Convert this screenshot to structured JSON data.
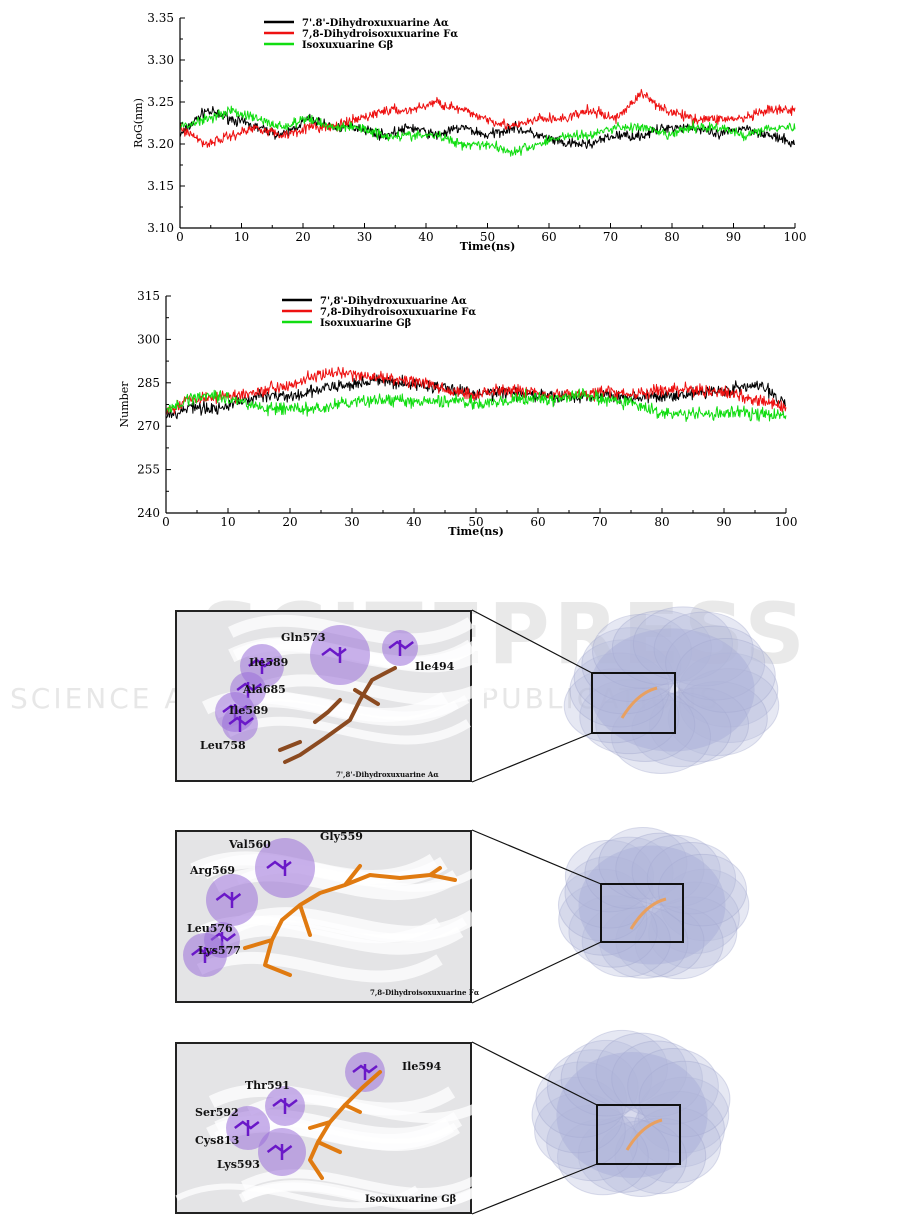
{
  "watermark": {
    "line1": "SCITEPRESS",
    "line2": "SCIENCE AND TECHNOLOGY PUBLICATIONS"
  },
  "colors": {
    "series_black": "#000000",
    "series_red": "#ee1111",
    "series_green": "#11dd11",
    "residue": "#7020c8",
    "ligand_brown": "#8b4a20",
    "ligand_orange": "#e07a10",
    "surface": "#b8bcdc"
  },
  "chart_data": [
    {
      "type": "line",
      "xlabel": "Time(ns)",
      "ylabel": "RoG(nm)",
      "xlim": [
        0,
        100
      ],
      "ylim": [
        3.1,
        3.35
      ],
      "x_ticks": [
        0,
        10,
        20,
        30,
        40,
        50,
        60,
        70,
        80,
        90,
        100
      ],
      "y_ticks": [
        "3.10",
        "3.15",
        "3.20",
        "3.25",
        "3.30",
        "3.35"
      ],
      "legend_position": "top-left",
      "series": [
        {
          "name": "7'.8'-Dihydroxuxuarine Aα",
          "color": "#000000",
          "values": [
            3.21,
            3.24,
            3.23,
            3.22,
            3.21,
            3.23,
            3.22,
            3.22,
            3.21,
            3.22,
            3.21,
            3.22,
            3.21,
            3.22,
            3.21,
            3.2,
            3.2,
            3.21,
            3.21,
            3.22,
            3.22,
            3.21,
            3.22,
            3.21,
            3.2
          ]
        },
        {
          "name": "7,8-Dihydroisoxuxuarine Fα",
          "color": "#ee1111",
          "values": [
            3.22,
            3.2,
            3.21,
            3.22,
            3.21,
            3.22,
            3.22,
            3.23,
            3.24,
            3.24,
            3.25,
            3.24,
            3.23,
            3.22,
            3.23,
            3.23,
            3.24,
            3.23,
            3.26,
            3.24,
            3.23,
            3.23,
            3.23,
            3.24,
            3.24
          ]
        },
        {
          "name": "Isoxuxuarine Gβ",
          "color": "#11dd11",
          "values": [
            3.22,
            3.23,
            3.24,
            3.23,
            3.22,
            3.23,
            3.22,
            3.22,
            3.21,
            3.21,
            3.21,
            3.2,
            3.2,
            3.19,
            3.2,
            3.21,
            3.21,
            3.22,
            3.22,
            3.21,
            3.22,
            3.22,
            3.21,
            3.22,
            3.22
          ]
        }
      ]
    },
    {
      "type": "line",
      "xlabel": "Time(ns)",
      "ylabel": "Number",
      "xlim": [
        0,
        100
      ],
      "ylim": [
        240,
        315
      ],
      "x_ticks": [
        0,
        10,
        20,
        30,
        40,
        50,
        60,
        70,
        80,
        90,
        100
      ],
      "y_ticks": [
        "240",
        "255",
        "270",
        "285",
        "300",
        "315"
      ],
      "legend_position": "top-center",
      "series": [
        {
          "name": "7',8'-Dihydroxuxuarine Aα",
          "color": "#000000",
          "values": [
            273,
            277,
            276,
            279,
            281,
            280,
            283,
            284,
            286,
            285,
            284,
            283,
            281,
            282,
            281,
            280,
            280,
            281,
            280,
            280,
            281,
            282,
            283,
            284,
            278
          ]
        },
        {
          "name": "7,8-Dihydroisoxuxuarine Fα",
          "color": "#ee1111",
          "values": [
            275,
            280,
            280,
            281,
            283,
            285,
            288,
            288,
            287,
            286,
            285,
            282,
            281,
            283,
            282,
            281,
            281,
            282,
            281,
            282,
            283,
            282,
            281,
            279,
            276
          ]
        },
        {
          "name": "Isoxuxuarine Gβ",
          "color": "#11dd11",
          "values": [
            275,
            280,
            281,
            278,
            276,
            276,
            276,
            278,
            279,
            279,
            278,
            279,
            278,
            278,
            280,
            279,
            281,
            279,
            278,
            275,
            274,
            274,
            275,
            274,
            274
          ]
        }
      ]
    }
  ],
  "panels": [
    {
      "ligand": "7',8'-Dihydroxuxuarine Aα",
      "residues": [
        "Gln573",
        "Ile589",
        "Ile494",
        "Ala685",
        "Ile589",
        "Leu758"
      ]
    },
    {
      "ligand": "7,8-Dihydroisoxuxuarine Fα",
      "residues": [
        "Val560",
        "Gly559",
        "Arg569",
        "Leu576",
        "Lys577"
      ]
    },
    {
      "ligand": "Isoxuxuarine Gβ",
      "residues": [
        "Ile594",
        "Thr591",
        "Ser592",
        "Cys813",
        "Lys593"
      ]
    }
  ]
}
